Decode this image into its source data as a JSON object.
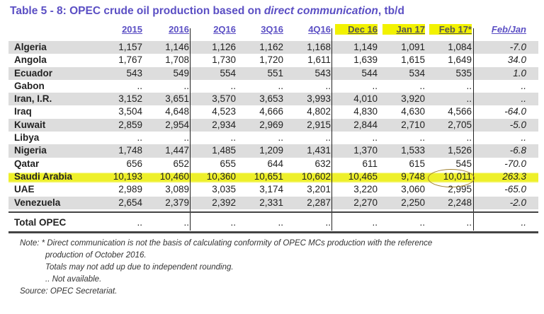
{
  "title": {
    "prefix": "Table 5 - 8: OPEC crude oil production based on ",
    "italic": "direct communication",
    "suffix": ", tb/d"
  },
  "columns": [
    "2015",
    "2016",
    "2Q16",
    "3Q16",
    "4Q16",
    "Dec 16",
    "Jan 17",
    "Feb 17*",
    "Feb/Jan"
  ],
  "rows": [
    {
      "name": "Algeria",
      "values": [
        "1,157",
        "1,146",
        "1,126",
        "1,162",
        "1,168",
        "1,149",
        "1,091",
        "1,084",
        "-7.0"
      ]
    },
    {
      "name": "Angola",
      "values": [
        "1,767",
        "1,708",
        "1,730",
        "1,720",
        "1,611",
        "1,639",
        "1,615",
        "1,649",
        "34.0"
      ]
    },
    {
      "name": "Ecuador",
      "values": [
        "543",
        "549",
        "554",
        "551",
        "543",
        "544",
        "534",
        "535",
        "1.0"
      ]
    },
    {
      "name": "Gabon",
      "values": [
        "..",
        "..",
        "..",
        "..",
        "..",
        "..",
        "..",
        "..",
        ".."
      ]
    },
    {
      "name": "Iran, I.R.",
      "values": [
        "3,152",
        "3,651",
        "3,570",
        "3,653",
        "3,993",
        "4,010",
        "3,920",
        "..",
        ".."
      ]
    },
    {
      "name": "Iraq",
      "values": [
        "3,504",
        "4,648",
        "4,523",
        "4,666",
        "4,802",
        "4,830",
        "4,630",
        "4,566",
        "-64.0"
      ]
    },
    {
      "name": "Kuwait",
      "values": [
        "2,859",
        "2,954",
        "2,934",
        "2,969",
        "2,915",
        "2,844",
        "2,710",
        "2,705",
        "-5.0"
      ]
    },
    {
      "name": "Libya",
      "values": [
        "..",
        "..",
        "..",
        "..",
        "..",
        "..",
        "..",
        "..",
        ".."
      ]
    },
    {
      "name": "Nigeria",
      "values": [
        "1,748",
        "1,447",
        "1,485",
        "1,209",
        "1,431",
        "1,370",
        "1,533",
        "1,526",
        "-6.8"
      ]
    },
    {
      "name": "Qatar",
      "values": [
        "656",
        "652",
        "655",
        "644",
        "632",
        "611",
        "615",
        "545",
        "-70.0"
      ]
    },
    {
      "name": "Saudi Arabia",
      "values": [
        "10,193",
        "10,460",
        "10,360",
        "10,651",
        "10,602",
        "10,465",
        "9,748",
        "10,011",
        "263.3"
      ]
    },
    {
      "name": "UAE",
      "values": [
        "2,989",
        "3,089",
        "3,035",
        "3,174",
        "3,201",
        "3,220",
        "3,060",
        "2,995",
        "-65.0"
      ]
    },
    {
      "name": "Venezuela",
      "values": [
        "2,654",
        "2,379",
        "2,392",
        "2,331",
        "2,287",
        "2,270",
        "2,250",
        "2,248",
        "-2.0"
      ]
    }
  ],
  "total": {
    "name": "Total  OPEC",
    "values": [
      "..",
      "..",
      "..",
      "..",
      "..",
      "..",
      "..",
      "..",
      ".."
    ]
  },
  "notes": [
    "Note: * Direct communication is not the basis of calculating conformity of OPEC MCs production with the reference",
    "production of October 2016.",
    "Totals may not add up due to independent rounding.",
    ".. Not available.",
    "Source: OPEC Secretariat."
  ],
  "highlight_color": "#eef02a"
}
